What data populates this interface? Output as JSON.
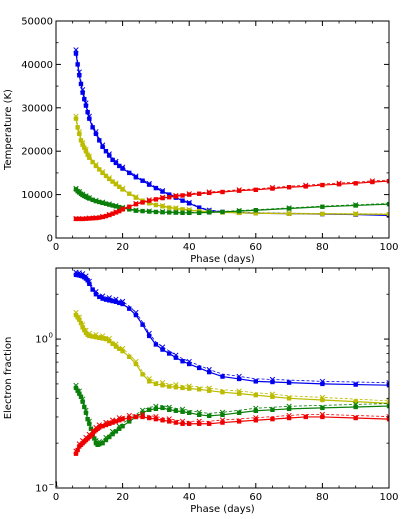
{
  "chart_data": [
    {
      "type": "line",
      "xlabel": "Phase (days)",
      "ylabel": "Temperature (K)",
      "xlim": [
        0,
        100
      ],
      "ylim": [
        0,
        50000
      ],
      "x_ticks": [
        "0",
        "20",
        "40",
        "60",
        "80",
        "100"
      ],
      "y_ticks": [
        "0",
        "10000",
        "20000",
        "30000",
        "40000",
        "50000"
      ],
      "grid": false,
      "legend": "none",
      "series": [
        {
          "color": "#0000ee",
          "marker": "square",
          "x": [
            6,
            6.5,
            7,
            7.5,
            8,
            8.5,
            9,
            9.5,
            10,
            11,
            12,
            13,
            14,
            15,
            16,
            17,
            18,
            19,
            20,
            22,
            24,
            26,
            28,
            30,
            32,
            34,
            36,
            38,
            40,
            43,
            46,
            50,
            55,
            60,
            70,
            80,
            90,
            100
          ],
          "y": [
            42500,
            40000,
            37500,
            35500,
            33500,
            32000,
            30500,
            29000,
            27500,
            25500,
            24000,
            22500,
            21000,
            20000,
            19000,
            18000,
            17300,
            16600,
            16000,
            15000,
            14000,
            13200,
            12300,
            11500,
            10700,
            10000,
            9300,
            8600,
            8000,
            7000,
            6300,
            6000,
            5800,
            5700,
            5600,
            5500,
            5400,
            5200
          ]
        },
        {
          "color": "#bbbb00",
          "marker": "square",
          "x": [
            6,
            6.5,
            7,
            7.5,
            8,
            8.5,
            9,
            9.5,
            10,
            11,
            12,
            13,
            14,
            15,
            16,
            17,
            18,
            19,
            20,
            22,
            24,
            26,
            28,
            30,
            32,
            34,
            36,
            38,
            40,
            43,
            46,
            50,
            55,
            60,
            70,
            80,
            90,
            100
          ],
          "y": [
            27500,
            25500,
            24000,
            22500,
            21500,
            20800,
            20000,
            19200,
            18500,
            17500,
            16600,
            15800,
            15000,
            14300,
            13600,
            13000,
            12400,
            11800,
            11200,
            10200,
            9300,
            8600,
            8000,
            7600,
            7300,
            7000,
            6800,
            6600,
            6400,
            6200,
            6000,
            5900,
            5800,
            5700,
            5600,
            5550,
            5500,
            5450
          ]
        },
        {
          "color": "#0a7f0a",
          "marker": "square",
          "x": [
            6,
            6.5,
            7,
            7.5,
            8,
            8.5,
            9,
            9.5,
            10,
            11,
            12,
            13,
            14,
            15,
            16,
            17,
            18,
            19,
            20,
            22,
            24,
            26,
            28,
            30,
            32,
            34,
            36,
            38,
            40,
            43,
            46,
            50,
            55,
            60,
            70,
            80,
            90,
            100
          ],
          "y": [
            11200,
            10800,
            10500,
            10200,
            9900,
            9700,
            9500,
            9300,
            9100,
            8800,
            8500,
            8300,
            8100,
            7900,
            7700,
            7500,
            7300,
            7100,
            6900,
            6600,
            6300,
            6200,
            6100,
            6000,
            5950,
            5900,
            5850,
            5800,
            5800,
            5800,
            5900,
            6000,
            6200,
            6400,
            6800,
            7200,
            7500,
            7800
          ]
        },
        {
          "color": "#ee0000",
          "marker": "square",
          "x": [
            6,
            7,
            8,
            9,
            10,
            11,
            12,
            13,
            14,
            15,
            16,
            17,
            18,
            19,
            20,
            22,
            24,
            26,
            28,
            30,
            32,
            34,
            36,
            38,
            40,
            43,
            46,
            50,
            55,
            60,
            65,
            70,
            75,
            80,
            85,
            90,
            95,
            100
          ],
          "y": [
            4400,
            4400,
            4400,
            4450,
            4500,
            4550,
            4600,
            4700,
            4850,
            5050,
            5300,
            5600,
            5900,
            6200,
            6600,
            7200,
            7800,
            8200,
            8600,
            8900,
            9200,
            9400,
            9600,
            9800,
            10000,
            10200,
            10400,
            10600,
            10900,
            11100,
            11400,
            11700,
            11900,
            12200,
            12400,
            12600,
            12900,
            13100
          ]
        }
      ]
    },
    {
      "type": "line",
      "xlabel": "Phase (days)",
      "ylabel": "Electron fraction",
      "xlim": [
        0,
        100
      ],
      "ylim": [
        0.1,
        3
      ],
      "log_y": true,
      "x_ticks": [
        "0",
        "20",
        "40",
        "60",
        "80",
        "100"
      ],
      "y_ticks": [
        {
          "value": 0.1,
          "mantissa": "10",
          "exponent": "−1"
        },
        {
          "value": 1,
          "mantissa": "10",
          "exponent": "0"
        }
      ],
      "grid": false,
      "legend": "none",
      "series": [
        {
          "color": "#0000ee",
          "marker": "square",
          "x": [
            6,
            6.5,
            7,
            7.5,
            8,
            8.5,
            9,
            9.5,
            10,
            11,
            12,
            13,
            14,
            15,
            16,
            17,
            18,
            19,
            20,
            22,
            24,
            26,
            28,
            30,
            32,
            34,
            36,
            38,
            40,
            43,
            46,
            50,
            55,
            60,
            65,
            70,
            80,
            90,
            100
          ],
          "y": [
            2.7,
            2.69,
            2.68,
            2.66,
            2.64,
            2.6,
            2.55,
            2.48,
            2.35,
            2.15,
            2.0,
            1.92,
            1.87,
            1.84,
            1.82,
            1.8,
            1.78,
            1.75,
            1.72,
            1.6,
            1.45,
            1.25,
            1.05,
            0.92,
            0.85,
            0.8,
            0.75,
            0.71,
            0.68,
            0.64,
            0.6,
            0.56,
            0.54,
            0.52,
            0.515,
            0.51,
            0.5,
            0.495,
            0.49
          ]
        },
        {
          "color": "#bbbb00",
          "marker": "square",
          "x": [
            6,
            6.5,
            7,
            7.5,
            8,
            8.5,
            9,
            9.5,
            10,
            11,
            12,
            13,
            14,
            15,
            16,
            17,
            18,
            19,
            20,
            22,
            24,
            26,
            28,
            30,
            32,
            34,
            36,
            38,
            40,
            43,
            46,
            50,
            55,
            60,
            65,
            70,
            80,
            90,
            100
          ],
          "y": [
            1.45,
            1.4,
            1.35,
            1.28,
            1.2,
            1.15,
            1.1,
            1.07,
            1.05,
            1.04,
            1.03,
            1.02,
            1.01,
            1.0,
            0.97,
            0.93,
            0.89,
            0.86,
            0.83,
            0.76,
            0.68,
            0.58,
            0.52,
            0.5,
            0.49,
            0.48,
            0.475,
            0.47,
            0.465,
            0.46,
            0.45,
            0.44,
            0.43,
            0.42,
            0.41,
            0.4,
            0.39,
            0.38,
            0.37
          ]
        },
        {
          "color": "#0a7f0a",
          "marker": "square",
          "x": [
            6,
            6.5,
            7,
            7.5,
            8,
            8.5,
            9,
            9.5,
            10,
            10.5,
            11,
            11.5,
            12,
            12.5,
            13,
            14,
            15,
            16,
            17,
            18,
            19,
            20,
            22,
            24,
            26,
            28,
            30,
            32,
            34,
            36,
            38,
            40,
            43,
            46,
            50,
            55,
            60,
            65,
            70,
            80,
            90,
            100
          ],
          "y": [
            0.47,
            0.45,
            0.43,
            0.41,
            0.38,
            0.35,
            0.32,
            0.29,
            0.27,
            0.25,
            0.23,
            0.215,
            0.2,
            0.195,
            0.197,
            0.2,
            0.21,
            0.22,
            0.23,
            0.24,
            0.25,
            0.26,
            0.28,
            0.3,
            0.32,
            0.335,
            0.34,
            0.345,
            0.335,
            0.33,
            0.325,
            0.32,
            0.31,
            0.305,
            0.31,
            0.32,
            0.33,
            0.335,
            0.34,
            0.345,
            0.35,
            0.355
          ]
        },
        {
          "color": "#ee0000",
          "marker": "square",
          "x": [
            6,
            6.5,
            7,
            7.5,
            8,
            8.5,
            9,
            9.5,
            10,
            10.5,
            11,
            11.5,
            12,
            12.5,
            13,
            14,
            15,
            16,
            17,
            18,
            19,
            20,
            22,
            24,
            26,
            28,
            30,
            32,
            34,
            36,
            38,
            40,
            43,
            46,
            50,
            55,
            60,
            65,
            70,
            75,
            80,
            90,
            100
          ],
          "y": [
            0.17,
            0.18,
            0.19,
            0.195,
            0.2,
            0.205,
            0.21,
            0.215,
            0.22,
            0.225,
            0.23,
            0.24,
            0.245,
            0.25,
            0.255,
            0.26,
            0.265,
            0.27,
            0.275,
            0.28,
            0.285,
            0.29,
            0.295,
            0.3,
            0.3,
            0.295,
            0.29,
            0.285,
            0.28,
            0.275,
            0.27,
            0.27,
            0.27,
            0.27,
            0.275,
            0.28,
            0.285,
            0.29,
            0.295,
            0.3,
            0.3,
            0.295,
            0.29
          ]
        }
      ]
    }
  ]
}
